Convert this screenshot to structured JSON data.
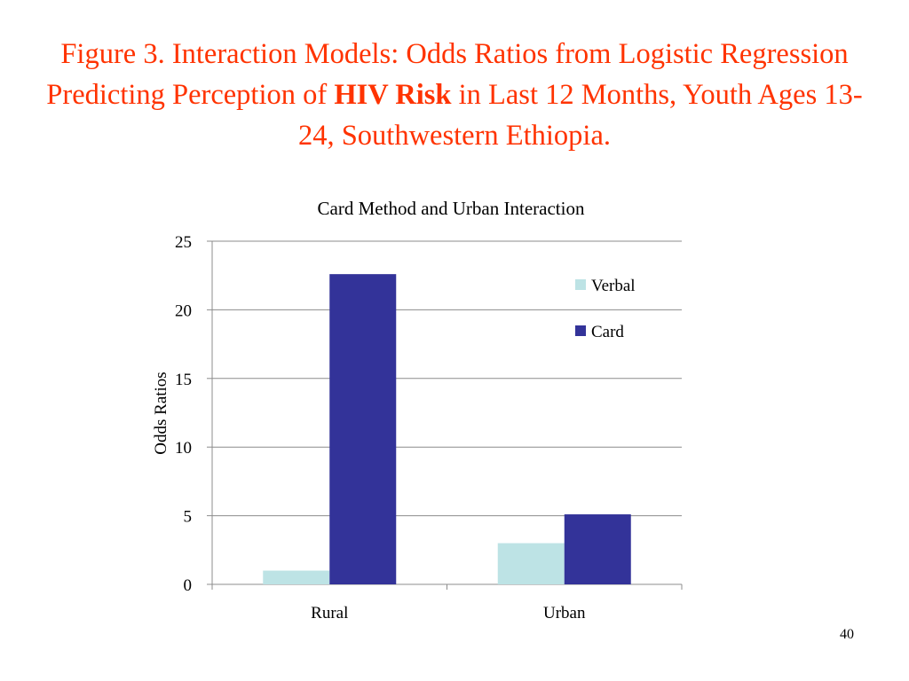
{
  "slide": {
    "title_before": "Figure 3. Interaction Models: Odds Ratios from Logistic Regression Predicting Perception of ",
    "title_emphasis": "HIV Risk",
    "title_after": " in Last 12 Months, Youth Ages 13-24, Southwestern Ethiopia.",
    "page_number": "40"
  },
  "colors": {
    "title": "#ff3300",
    "verbal": "#bde3e5",
    "card": "#333399",
    "gridline": "#8c8c8c",
    "text": "#000000"
  },
  "chart_data": {
    "type": "bar",
    "title": "Card Method and Urban Interaction",
    "xlabel": "",
    "ylabel": "Odds Ratios",
    "categories": [
      "Rural",
      "Urban"
    ],
    "series": [
      {
        "name": "Verbal",
        "values": [
          1.0,
          3.0
        ]
      },
      {
        "name": "Card",
        "values": [
          22.6,
          5.1
        ]
      }
    ],
    "ylim": [
      0,
      25
    ],
    "yticks": [
      0,
      5,
      10,
      15,
      20,
      25
    ],
    "grid": true,
    "legend_position": "right"
  }
}
